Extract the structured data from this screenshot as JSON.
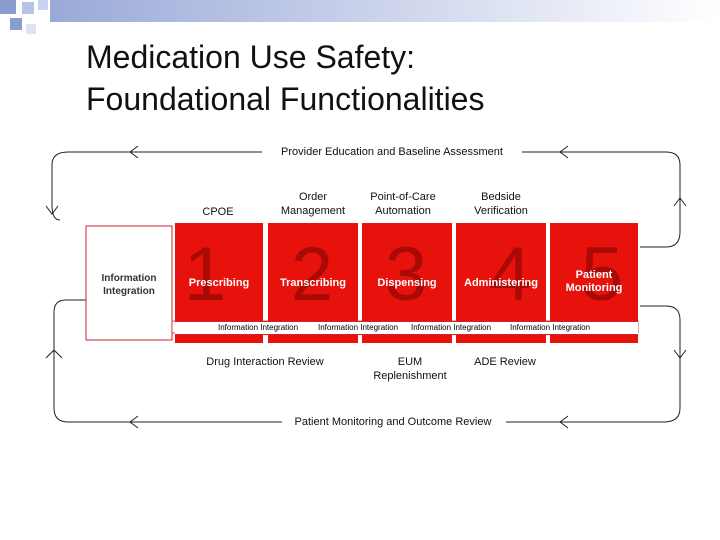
{
  "title_line1": "Medication Use Safety:",
  "title_line2": "Foundational Functionalities",
  "top_label": "Provider Education and Baseline Assessment",
  "bottom_label": "Patient Monitoring and Outcome Review",
  "top_items": [
    {
      "text": "CPOE"
    },
    {
      "text": "Order\nManagement"
    },
    {
      "text": "Point-of-Care\nAutomation"
    },
    {
      "text": "Bedside\nVerification"
    }
  ],
  "left_box": "Information\nIntegration",
  "stages": [
    {
      "number": "1",
      "label": "Prescribing"
    },
    {
      "number": "2",
      "label": "Transcribing"
    },
    {
      "number": "3",
      "label": "Dispensing"
    },
    {
      "number": "4",
      "label": "Administering"
    },
    {
      "number": "5",
      "label": "Patient\nMonitoring"
    }
  ],
  "integration_labels": [
    "Information Integration",
    "Information Integration",
    "Information Integration",
    "Information Integration"
  ],
  "bottom_items": [
    {
      "text": "Drug Interaction Review"
    },
    {
      "text": "EUM\nReplenishment"
    },
    {
      "text": "ADE Review"
    }
  ],
  "colors": {
    "stage_red": "#e8120c",
    "number_red": "#a90a06",
    "accent_blue": "#8a9bd0"
  }
}
